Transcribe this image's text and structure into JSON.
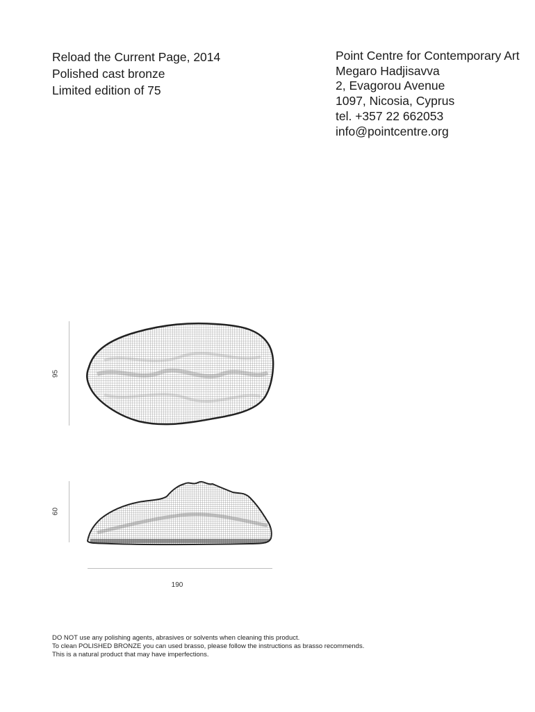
{
  "artwork": {
    "title_line": "Reload the Current Page, 2014",
    "material": "Polished cast bronze",
    "edition": "Limited edition of 75"
  },
  "gallery": {
    "name": "Point Centre for Contemporary Art",
    "building": "Megaro Hadjisavva",
    "street": "2, Evagorou Avenue",
    "city": "1097, Nicosia, Cyprus",
    "tel": "tel. +357 22 662053",
    "email": "info@pointcentre.org"
  },
  "dimensions": {
    "top_view_height": "95",
    "side_view_height": "60",
    "width": "190"
  },
  "footer": {
    "line1": "DO NOT use any polishing agents, abrasives or solvents when cleaning this product.",
    "line2": "To clean POLISHED BRONZE you can used brasso, please follow the instructions as brasso recommends.",
    "line3": "This is a natural product that may have imperfections."
  }
}
